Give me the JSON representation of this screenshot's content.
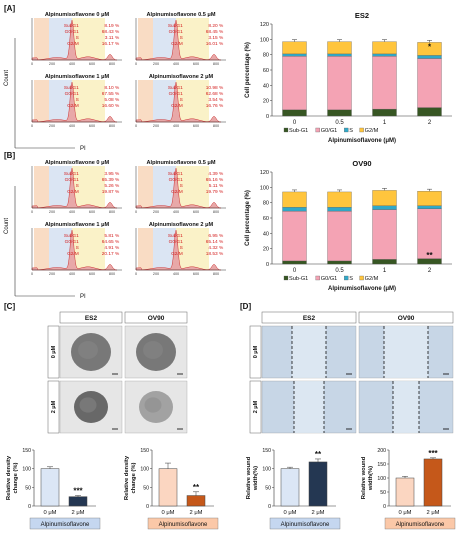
{
  "panels": {
    "A": "[A]",
    "B": "[B]",
    "C": "[C]",
    "D": "[D]"
  },
  "flow": {
    "axis_count": "Count",
    "axis_pi": "PI",
    "ticks": [
      "0",
      "200",
      "400",
      "600",
      "800"
    ],
    "phase_labels": [
      "SubG1",
      "G0/G1",
      "S",
      "G2/M"
    ],
    "colors": {
      "subg1": "#f9dcc4",
      "g0g1": "#dbe5f3",
      "s": "#faf2c8",
      "peak": "#e8a8a8",
      "line": "#cc3333",
      "text": "#d42020"
    },
    "A": [
      {
        "title": "Alpinumisoflavone 0 μM",
        "values": [
          "8.19 %",
          "68.43 %",
          "3.11 %",
          "16.17 %"
        ]
      },
      {
        "title": "Alpinumisoflavone 0.5 μM",
        "values": [
          "8.20 %",
          "68.45 %",
          "3.15 %",
          "16.01 %"
        ]
      },
      {
        "title": "Alpinumisoflavone 1 μM",
        "values": [
          "8.10 %",
          "67.55 %",
          "5.08 %",
          "16.60 %"
        ]
      },
      {
        "title": "Alpinumisoflavone 2 μM",
        "values": [
          "10.98 %",
          "62.68 %",
          "3.54 %",
          "16.76 %"
        ]
      }
    ],
    "B": [
      {
        "title": "Alpinumisoflavone 0 μM",
        "values": [
          "3.95 %",
          "65.39 %",
          "5.26 %",
          "19.87 %"
        ]
      },
      {
        "title": "Alpinumisoflavone 0.5 μM",
        "values": [
          "4.39 %",
          "65.16 %",
          "5.11 %",
          "19.79 %"
        ]
      },
      {
        "title": "Alpinumisoflavone 1 μM",
        "values": [
          "5.81 %",
          "64.65 %",
          "4.91 %",
          "20.17 %"
        ]
      },
      {
        "title": "Alpinumisoflavone 2 μM",
        "values": [
          "6.95 %",
          "65.14 %",
          "4.32 %",
          "18.53 %"
        ]
      }
    ]
  },
  "chart_data": [
    {
      "type": "bar",
      "title": "ES2",
      "ylabel": "Cell percentage (%)",
      "xlabel": "Alpinumisoflavone (μM)",
      "categories": [
        "0",
        "0.5",
        "1",
        "2"
      ],
      "ylim": [
        0,
        120
      ],
      "yticks": [
        "0",
        "20",
        "40",
        "60",
        "80",
        "100",
        "120"
      ],
      "legend": [
        "Sub-G1",
        "G0/G1",
        "S",
        "G2/M"
      ],
      "series": [
        {
          "name": "Sub-G1",
          "color": "#375623",
          "values": [
            8,
            8,
            9,
            11
          ]
        },
        {
          "name": "G0/G1",
          "color": "#f4a3b4",
          "values": [
            70,
            70,
            69,
            64
          ]
        },
        {
          "name": "S",
          "color": "#31a8c8",
          "values": [
            3,
            3,
            3,
            4
          ]
        },
        {
          "name": "G2/M",
          "color": "#ffc53d",
          "values": [
            16,
            16,
            16,
            17
          ]
        }
      ],
      "stars": [
        "",
        "",
        "",
        "*"
      ],
      "legend_position": "bottom"
    },
    {
      "type": "bar",
      "title": "OV90",
      "ylabel": "Cell percentage (%)",
      "xlabel": "Alpinumisoflavone (μM)",
      "categories": [
        "0",
        "0.5",
        "1",
        "2"
      ],
      "ylim": [
        0,
        120
      ],
      "yticks": [
        "0",
        "20",
        "40",
        "60",
        "80",
        "100",
        "120"
      ],
      "legend": [
        "Sub-G1",
        "G0/G1",
        "S",
        "G2/M"
      ],
      "series": [
        {
          "name": "Sub-G1",
          "color": "#375623",
          "values": [
            4,
            4,
            6,
            7
          ]
        },
        {
          "name": "G0/G1",
          "color": "#f4a3b4",
          "values": [
            65,
            65,
            65,
            65
          ]
        },
        {
          "name": "S",
          "color": "#31a8c8",
          "values": [
            5,
            5,
            5,
            4
          ]
        },
        {
          "name": "G2/M",
          "color": "#ffc53d",
          "values": [
            20,
            20,
            20,
            19
          ]
        }
      ],
      "stars": [
        "",
        "",
        "",
        "**"
      ],
      "legend_position": "bottom"
    },
    {
      "type": "bar",
      "ylabel": "Relative density change (%)",
      "categories": [
        "0 μM",
        "2 μM"
      ],
      "ylim": [
        0,
        150
      ],
      "yticks": [
        "0",
        "50",
        "100",
        "150"
      ],
      "values": [
        100,
        25
      ],
      "errors": [
        5,
        3
      ],
      "colors": [
        "#dbe6f5",
        "#243752"
      ],
      "stars": [
        "",
        "***"
      ],
      "group_label": "Alpinumisoflavone",
      "group_color": "#c5d7f0"
    },
    {
      "type": "bar",
      "ylabel": "Relative density change (%)",
      "categories": [
        "0 μM",
        "2 μM"
      ],
      "ylim": [
        0,
        150
      ],
      "yticks": [
        "0",
        "50",
        "100",
        "150"
      ],
      "values": [
        100,
        28
      ],
      "errors": [
        15,
        10
      ],
      "colors": [
        "#fbd6c1",
        "#c5581a"
      ],
      "stars": [
        "",
        "**"
      ],
      "group_label": "Alpinumisoflavone",
      "group_color": "#fbc8a8"
    },
    {
      "type": "bar",
      "ylabel": "Relative wound width(%)",
      "categories": [
        "0 μM",
        "2 μM"
      ],
      "ylim": [
        0,
        150
      ],
      "yticks": [
        "0",
        "50",
        "100",
        "150"
      ],
      "values": [
        100,
        118
      ],
      "errors": [
        4,
        8
      ],
      "colors": [
        "#dbe6f5",
        "#243752"
      ],
      "stars": [
        "",
        "**"
      ],
      "group_label": "Alpinumisoflavone",
      "group_color": "#c5d7f0"
    },
    {
      "type": "bar",
      "ylabel": "Relative wound width(%)",
      "categories": [
        "0 μM",
        "2 μM"
      ],
      "ylim": [
        0,
        200
      ],
      "yticks": [
        "0",
        "50",
        "100",
        "150",
        "200"
      ],
      "values": [
        100,
        168
      ],
      "errors": [
        6,
        4
      ],
      "colors": [
        "#fbd6c1",
        "#c5581a"
      ],
      "stars": [
        "",
        "***"
      ],
      "group_label": "Alpinumisoflavone",
      "group_color": "#fbc8a8"
    }
  ],
  "images": {
    "C": {
      "cols": [
        "ES2",
        "OV90"
      ],
      "rows": [
        "0 μM",
        "2 μM"
      ],
      "bg": "#b8b8b8"
    },
    "D": {
      "cols": [
        "ES2",
        "OV90"
      ],
      "rows": [
        "0 μM",
        "2 μM"
      ],
      "bg": "#c7d6e6"
    }
  }
}
